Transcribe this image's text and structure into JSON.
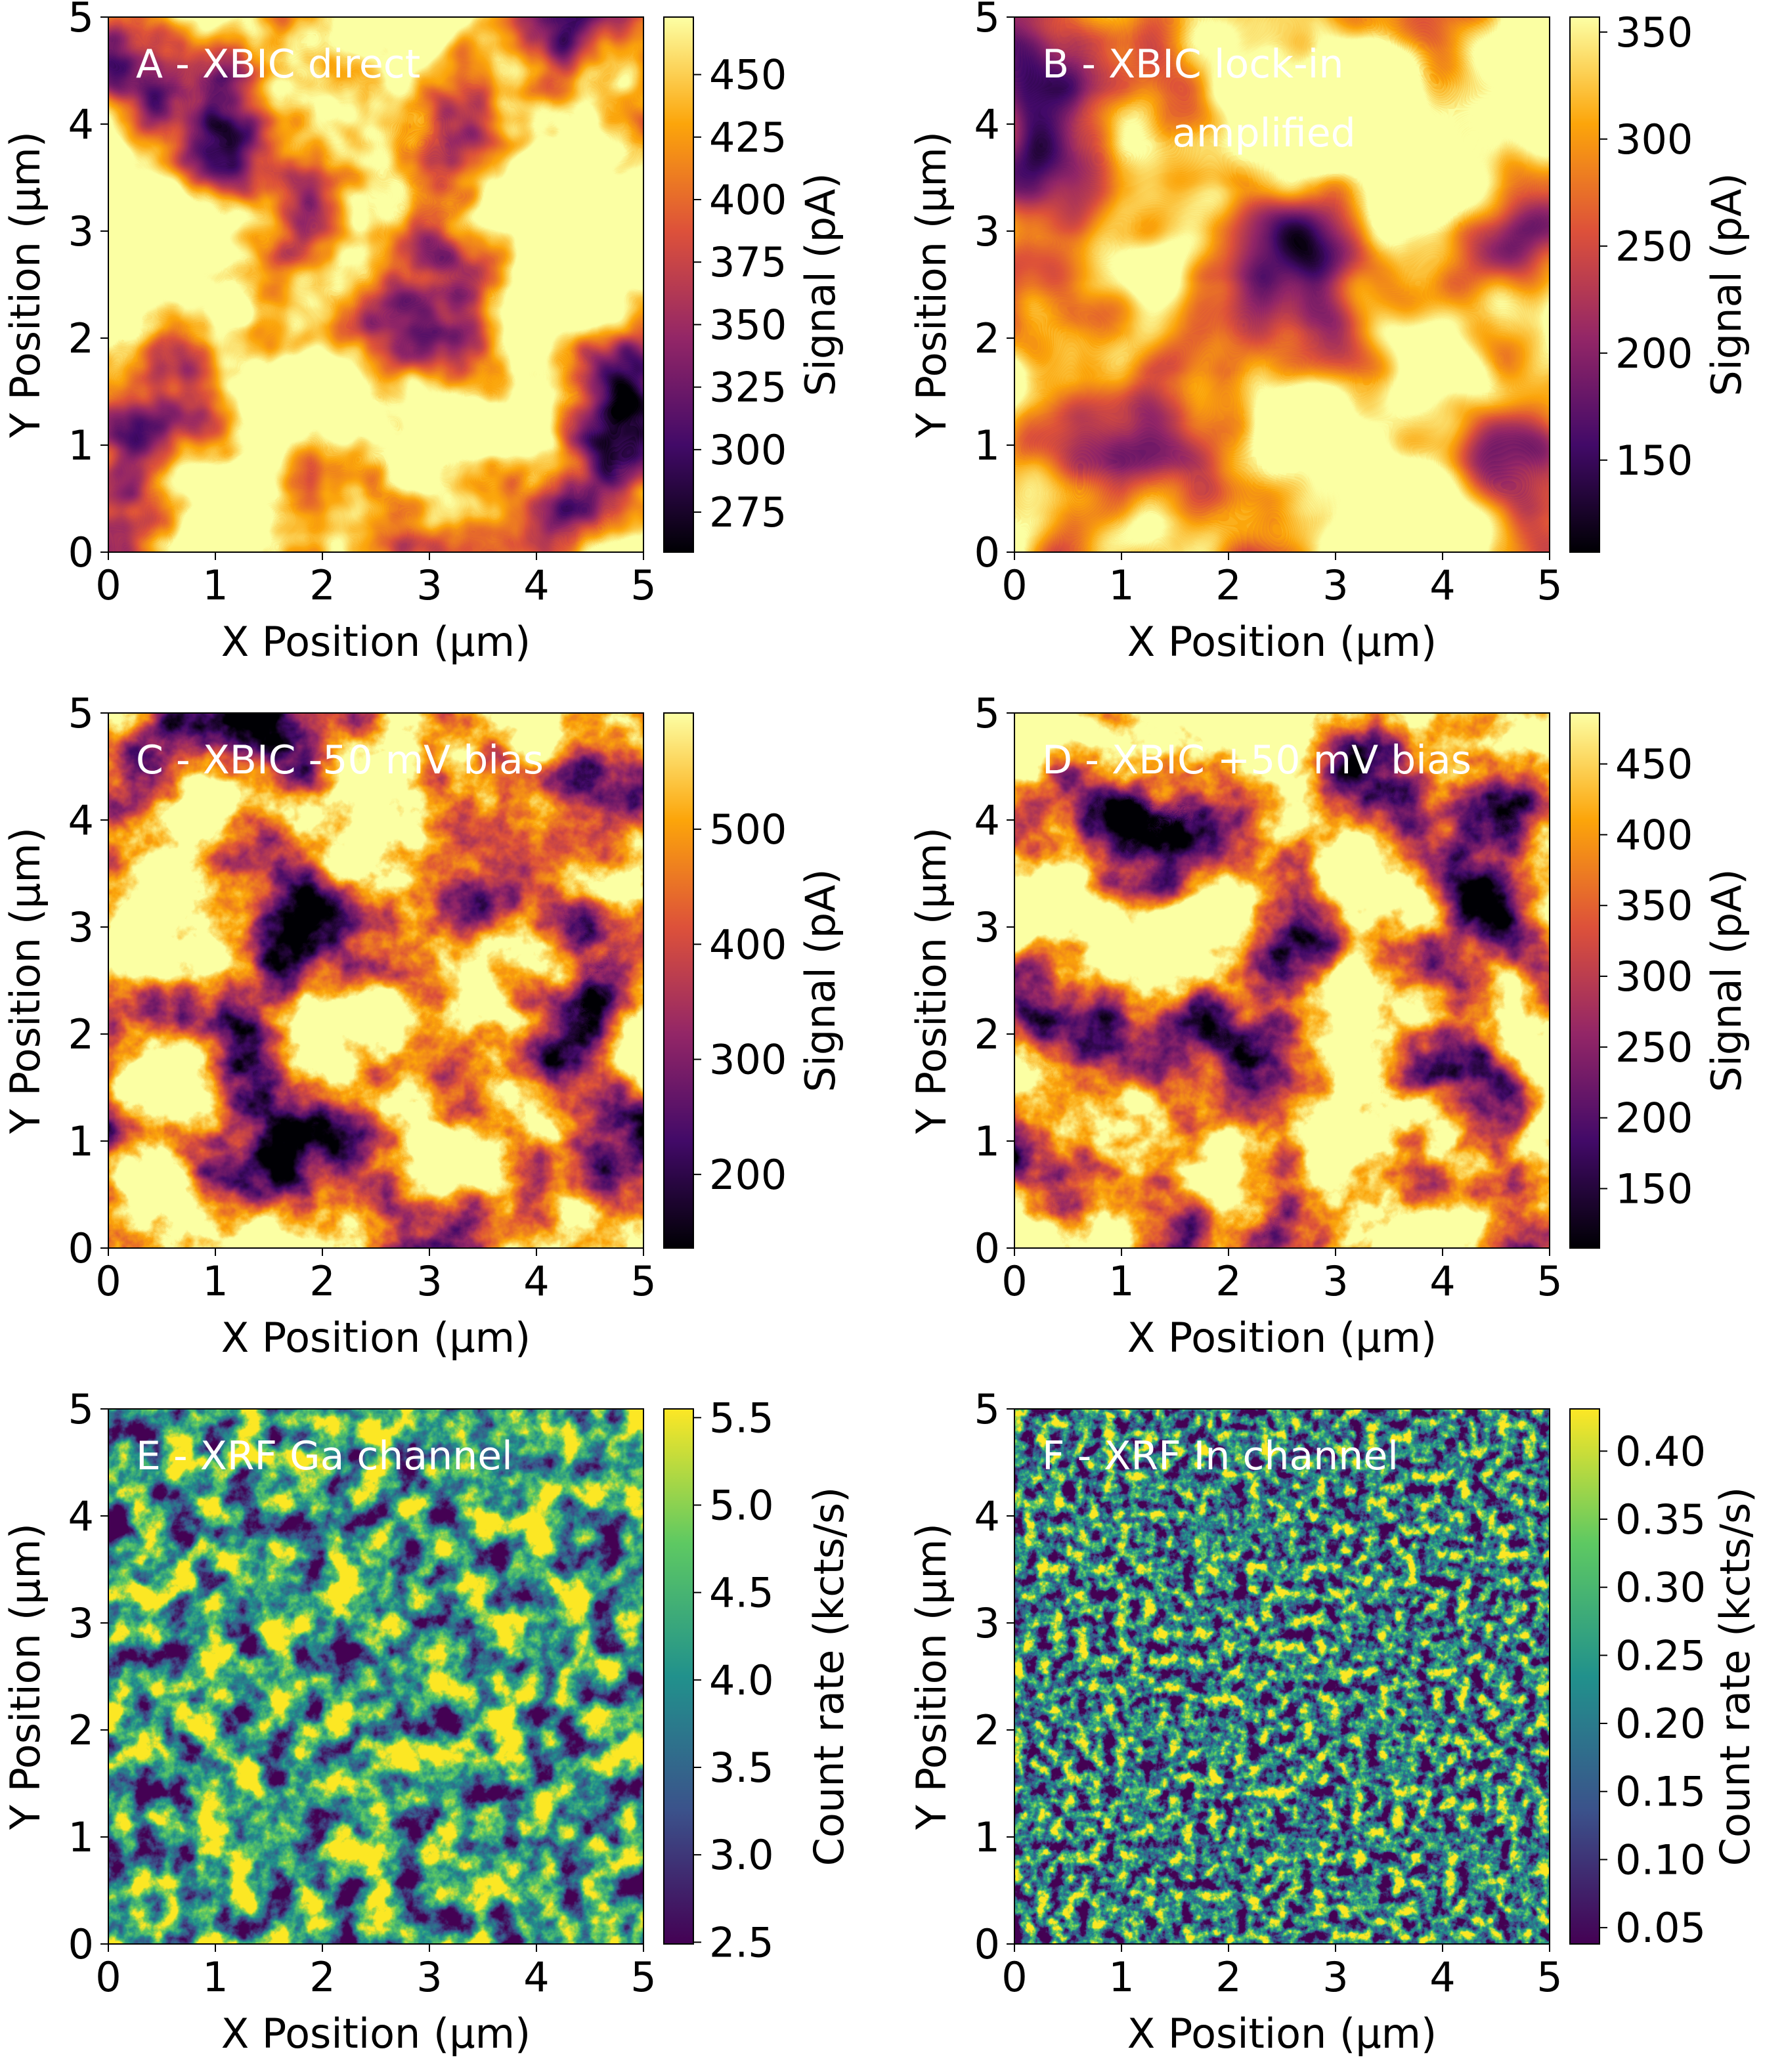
{
  "chart_data": [
    {
      "type": "heatmap",
      "title": "A - XBIC direct",
      "xlabel": "X Position (μm)",
      "ylabel": "Y Position (μm)",
      "colorbar_label": "Signal (pA)",
      "colormap": "inferno",
      "xlim": [
        0,
        5
      ],
      "xticks": [
        0,
        1,
        2,
        3,
        4,
        5
      ],
      "ylim": [
        0,
        5
      ],
      "yticks": [
        0,
        1,
        2,
        3,
        4,
        5
      ],
      "clim": [
        259,
        473
      ],
      "cticks": [
        275,
        300,
        325,
        350,
        375,
        400,
        425,
        450
      ]
    },
    {
      "type": "heatmap",
      "title": "B - XBIC lock-in",
      "subtitle": "amplified",
      "xlabel": "X Position (μm)",
      "ylabel": "Y Position (μm)",
      "colorbar_label": "Signal (pA)",
      "colormap": "inferno",
      "xlim": [
        0,
        5
      ],
      "xticks": [
        0,
        1,
        2,
        3,
        4,
        5
      ],
      "ylim": [
        0,
        5
      ],
      "yticks": [
        0,
        1,
        2,
        3,
        4,
        5
      ],
      "clim": [
        107,
        357
      ],
      "cticks": [
        150,
        200,
        250,
        300,
        350
      ]
    },
    {
      "type": "heatmap",
      "title": "C - XBIC -50 mV bias",
      "xlabel": "X Position (μm)",
      "ylabel": "Y Position (μm)",
      "colorbar_label": "Signal (pA)",
      "colormap": "inferno",
      "xlim": [
        0,
        5
      ],
      "xticks": [
        0,
        1,
        2,
        3,
        4,
        5
      ],
      "ylim": [
        0,
        5
      ],
      "yticks": [
        0,
        1,
        2,
        3,
        4,
        5
      ],
      "clim": [
        136,
        601
      ],
      "cticks": [
        200,
        300,
        400,
        500
      ]
    },
    {
      "type": "heatmap",
      "title": "D - XBIC +50 mV bias",
      "xlabel": "X Position (μm)",
      "ylabel": "Y Position (μm)",
      "colorbar_label": "Signal (pA)",
      "colormap": "inferno",
      "xlim": [
        0,
        5
      ],
      "xticks": [
        0,
        1,
        2,
        3,
        4,
        5
      ],
      "ylim": [
        0,
        5
      ],
      "yticks": [
        0,
        1,
        2,
        3,
        4,
        5
      ],
      "clim": [
        108,
        486
      ],
      "cticks": [
        150,
        200,
        250,
        300,
        350,
        400,
        450
      ]
    },
    {
      "type": "heatmap",
      "title": "E - XRF Ga channel",
      "xlabel": "X Position (μm)",
      "ylabel": "Y Position (μm)",
      "colorbar_label": "Count rate (kcts/s)",
      "colormap": "viridis",
      "xlim": [
        0,
        5
      ],
      "xticks": [
        0,
        1,
        2,
        3,
        4,
        5
      ],
      "ylim": [
        0,
        5
      ],
      "yticks": [
        0,
        1,
        2,
        3,
        4,
        5
      ],
      "clim": [
        2.49,
        5.55
      ],
      "cticks": [
        2.5,
        {
          "value": 3,
          "label": "3.0"
        },
        3.5,
        {
          "value": 4,
          "label": "4.0"
        },
        4.5,
        {
          "value": 5,
          "label": "5.0"
        },
        5.5
      ]
    },
    {
      "type": "heatmap",
      "title": "F - XRF In channel",
      "xlabel": "X Position (μm)",
      "ylabel": "Y Position (μm)",
      "colorbar_label": "Count rate (kcts/s)",
      "colormap": "viridis",
      "xlim": [
        0,
        5
      ],
      "xticks": [
        0,
        1,
        2,
        3,
        4,
        5
      ],
      "ylim": [
        0,
        5
      ],
      "yticks": [
        0,
        1,
        2,
        3,
        4,
        5
      ],
      "clim": [
        0.038,
        0.431
      ],
      "cticks": [
        0.05,
        {
          "value": 0.1,
          "label": "0.10"
        },
        0.15,
        {
          "value": 0.2,
          "label": "0.20"
        },
        0.25,
        {
          "value": 0.3,
          "label": "0.30"
        },
        0.35,
        {
          "value": 0.4,
          "label": "0.40"
        }
      ]
    }
  ]
}
